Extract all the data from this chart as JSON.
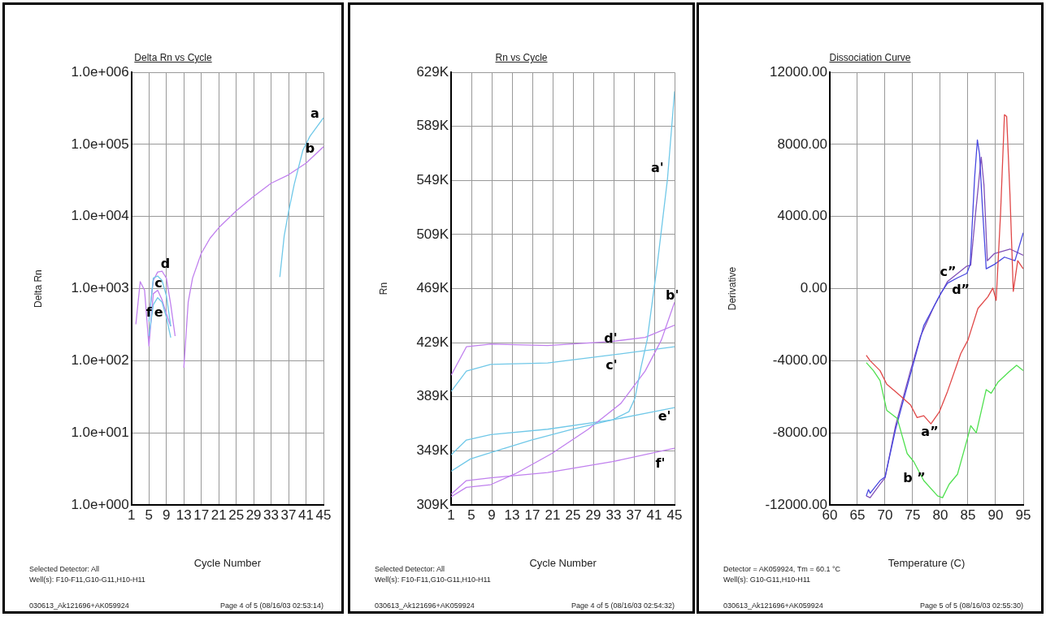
{
  "chart_data": [
    {
      "type": "line",
      "title": "Delta Rn vs Cycle",
      "xlabel": "Cycle Number",
      "ylabel": "Delta Rn",
      "log": "y",
      "grid": true,
      "xlim": [
        1,
        45
      ],
      "xticks": [
        1,
        5,
        9,
        13,
        17,
        21,
        25,
        29,
        33,
        37,
        41,
        45
      ],
      "ylim": [
        1,
        1000000
      ],
      "yticks": [
        {
          "value": 1,
          "label": "1.0e+000"
        },
        {
          "value": 10,
          "label": "1.0e+001"
        },
        {
          "value": 100,
          "label": "1.0e+002"
        },
        {
          "value": 1000,
          "label": "1.0e+003"
        },
        {
          "value": 10000,
          "label": "1.0e+004"
        },
        {
          "value": 100000,
          "label": "1.0e+005"
        },
        {
          "value": 1000000,
          "label": "1.0e+006"
        }
      ],
      "series": [
        {
          "name": "a",
          "color": "#70c8e8",
          "x": [
            35,
            36,
            37,
            38.3,
            40.3,
            41.9,
            45
          ],
          "values": [
            1450,
            5400,
            11700,
            28000,
            84000,
            130000,
            235000
          ]
        },
        {
          "name": "b",
          "color": "#c080ee",
          "x": [
            13,
            14,
            15,
            17,
            19,
            21,
            25,
            29,
            33,
            37,
            41,
            45
          ],
          "values": [
            80,
            650,
            1400,
            3100,
            5000,
            7000,
            12000,
            19000,
            29000,
            38000,
            55000,
            93000
          ]
        },
        {
          "name": "c",
          "color": "#70c8e8",
          "x": [
            5,
            6,
            7,
            8,
            9,
            10
          ],
          "values": [
            350,
            1400,
            1500,
            1300,
            800,
            300
          ]
        },
        {
          "name": "d",
          "color": "#c080ee",
          "x": [
            5,
            6,
            7,
            8,
            9,
            10,
            11
          ],
          "values": [
            400,
            1300,
            1700,
            1750,
            1400,
            600,
            220
          ]
        },
        {
          "name": "e",
          "color": "#70c8e8",
          "x": [
            5,
            6,
            7,
            8,
            9,
            10
          ],
          "values": [
            220,
            600,
            750,
            650,
            400,
            210
          ]
        },
        {
          "name": "f",
          "color": "#c080ee",
          "x": [
            2,
            3,
            4,
            5,
            6,
            7,
            8,
            9,
            10
          ],
          "values": [
            320,
            1250,
            950,
            160,
            850,
            950,
            700,
            450,
            300
          ]
        }
      ],
      "annotations": [
        "Selected Detector: All",
        "Well(s): F10-F11,G10-G11,H10-H11",
        "030613_Ak121696+AK059924",
        "Page 4 of 5 (08/16/03 02:53:14)"
      ]
    },
    {
      "type": "line",
      "title": "Rn vs Cycle",
      "xlabel": "Cycle Number",
      "ylabel": "Rn",
      "grid": true,
      "xlim": [
        1,
        45
      ],
      "xticks": [
        1,
        5,
        9,
        13,
        17,
        21,
        25,
        29,
        33,
        37,
        41,
        45
      ],
      "ylim": [
        309000,
        629000
      ],
      "yticks": [
        {
          "value": 309000,
          "label": "309K"
        },
        {
          "value": 349000,
          "label": "349K"
        },
        {
          "value": 389000,
          "label": "389K"
        },
        {
          "value": 429000,
          "label": "429K"
        },
        {
          "value": 469000,
          "label": "469K"
        },
        {
          "value": 509000,
          "label": "509K"
        },
        {
          "value": 549000,
          "label": "549K"
        },
        {
          "value": 589000,
          "label": "589K"
        },
        {
          "value": 629000,
          "label": "629K"
        }
      ],
      "series": [
        {
          "name": "a'",
          "color": "#70c8e8",
          "x": [
            1,
            4.8,
            9,
            16.8,
            24.8,
            32.8,
            36,
            37.2,
            38.4,
            39.6,
            41.6,
            43.6,
            45
          ],
          "values": [
            334000,
            343000,
            348000,
            357000,
            365000,
            372000,
            378000,
            388000,
            411000,
            431000,
            487000,
            550000,
            615000
          ]
        },
        {
          "name": "b'",
          "color": "#c080ee",
          "x": [
            1,
            4,
            8.8,
            13.6,
            20.8,
            28,
            34.4,
            39.2,
            42.4,
            45
          ],
          "values": [
            315000,
            322000,
            324000,
            332000,
            347000,
            365000,
            384000,
            408000,
            431000,
            459000
          ]
        },
        {
          "name": "c'",
          "color": "#70c8e8",
          "x": [
            1,
            4,
            8.8,
            20,
            32.8,
            45
          ],
          "values": [
            393000,
            408000,
            413000,
            414000,
            420000,
            426000
          ]
        },
        {
          "name": "d'",
          "color": "#c080ee",
          "x": [
            1,
            4,
            8.8,
            20,
            32.8,
            39.2,
            45
          ],
          "values": [
            405000,
            426000,
            428000,
            427000,
            430000,
            433000,
            442000
          ]
        },
        {
          "name": "e'",
          "color": "#70c8e8",
          "x": [
            1,
            4,
            8.8,
            20,
            32.8,
            45
          ],
          "values": [
            346000,
            357000,
            361000,
            365000,
            372000,
            381000
          ]
        },
        {
          "name": "f'",
          "color": "#c080ee",
          "x": [
            1,
            4,
            8.8,
            20,
            32.8,
            45
          ],
          "values": [
            317000,
            327000,
            329000,
            333000,
            341000,
            351000
          ]
        }
      ],
      "annotations": [
        "Selected Detector: All",
        "Well(s): F10-F11,G10-G11,H10-H11",
        "030613_Ak121696+AK059924",
        "Page 4 of 5 (08/16/03 02:54:32)"
      ]
    },
    {
      "type": "line",
      "title": "Dissociation Curve",
      "xlabel": "Temperature (C)",
      "ylabel": "Derivative",
      "grid": true,
      "xlim": [
        60,
        95
      ],
      "xticks": [
        60,
        65,
        70,
        75,
        80,
        85,
        90,
        95
      ],
      "ylim": [
        -12000,
        12000
      ],
      "yticks": [
        {
          "value": -12000,
          "label": "-12000.00"
        },
        {
          "value": -8000,
          "label": "-8000.00"
        },
        {
          "value": -4000,
          "label": "-4000.00"
        },
        {
          "value": 0,
          "label": "0.00"
        },
        {
          "value": 4000,
          "label": "4000.00"
        },
        {
          "value": 8000,
          "label": "8000.00"
        },
        {
          "value": 12000,
          "label": "12000.00"
        }
      ],
      "series": [
        {
          "name": "a”",
          "color": "#e04848",
          "x": [
            66.6,
            67.3,
            69.1,
            70.3,
            72.2,
            74.6,
            75.8,
            77,
            78.3,
            79.8,
            81.3,
            83.7,
            85,
            86.8,
            88.6,
            89.5,
            90.1,
            90.9,
            91.6,
            92,
            92.6,
            93.2,
            94,
            95
          ],
          "values": [
            -3700,
            -4000,
            -4550,
            -5300,
            -5800,
            -6450,
            -7150,
            -7050,
            -7500,
            -6850,
            -5700,
            -3600,
            -2850,
            -1100,
            -450,
            30,
            -650,
            4200,
            9650,
            9550,
            5200,
            -150,
            1550,
            1100
          ]
        },
        {
          "name": "b ”",
          "color": "#50e050",
          "x": [
            66.6,
            67.9,
            69.1,
            70.3,
            72.2,
            74,
            75.2,
            77,
            79.5,
            80.4,
            81.6,
            83.1,
            85,
            85.5,
            86.5,
            88.3,
            89.2,
            90.4,
            92.3,
            93.8,
            95
          ],
          "values": [
            -4100,
            -4550,
            -5100,
            -6750,
            -7200,
            -9150,
            -9600,
            -10650,
            -11500,
            -11600,
            -10850,
            -10300,
            -8200,
            -7600,
            -8000,
            -5600,
            -5800,
            -5200,
            -4650,
            -4250,
            -4550
          ]
        },
        {
          "name": "c”",
          "color": "#4848e0",
          "x": [
            66.6,
            67,
            67.3,
            69.1,
            70,
            71.9,
            74.6,
            77,
            78.9,
            80.1,
            81.3,
            83.1,
            84.8,
            85.4,
            86.2,
            86.7,
            87.1,
            87.6,
            88.3,
            89.8,
            91.6,
            93.5,
            95
          ],
          "values": [
            -11500,
            -11150,
            -11350,
            -10650,
            -10450,
            -7800,
            -4750,
            -2050,
            -950,
            -250,
            300,
            600,
            850,
            1350,
            6150,
            8250,
            7450,
            4600,
            1100,
            1350,
            1750,
            1550,
            3100
          ]
        },
        {
          "name": "d”",
          "color": "#8050b8",
          "x": [
            66.6,
            67.3,
            69.1,
            70,
            71.9,
            74.6,
            76.4,
            78.9,
            81.3,
            84.8,
            85.5,
            86.4,
            87.4,
            87.9,
            88.5,
            89.8,
            92.6,
            95
          ],
          "values": [
            -11500,
            -11600,
            -10850,
            -10500,
            -7600,
            -4550,
            -2650,
            -950,
            400,
            1250,
            1300,
            4250,
            7300,
            5750,
            1550,
            1950,
            2200,
            1850
          ]
        }
      ],
      "annotations": [
        "Detector = AK059924, Tm = 60.1 °C",
        "Well(s): G10-G11,H10-H11",
        "030613_Ak121696+AK059924",
        "Page 5 of 5 (08/16/03 02:55:30)"
      ]
    }
  ]
}
